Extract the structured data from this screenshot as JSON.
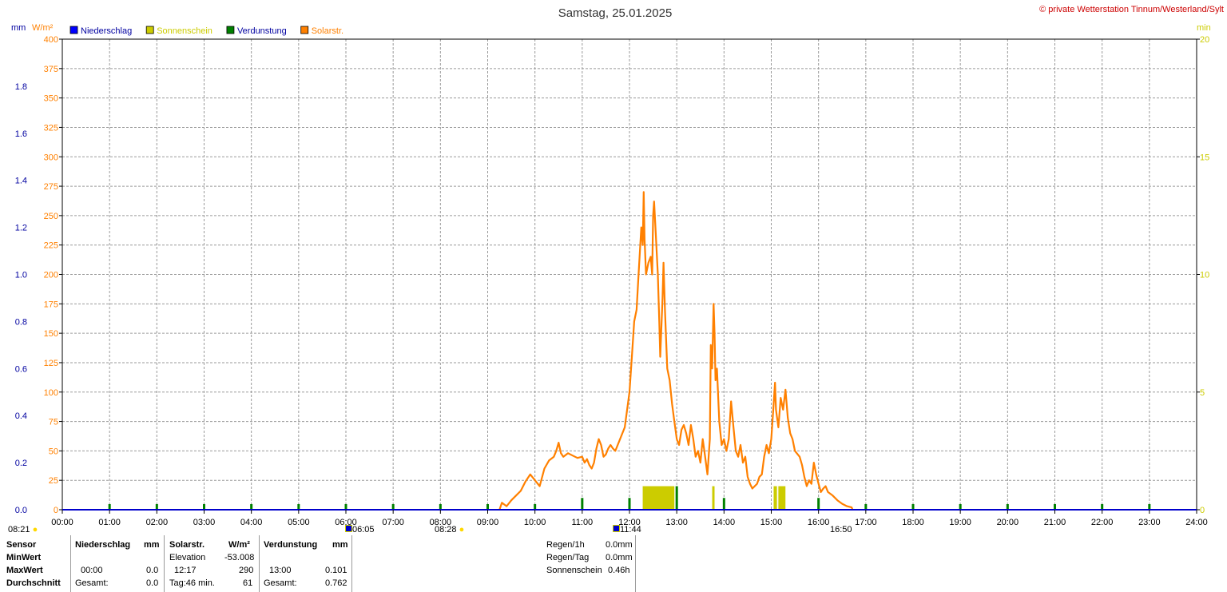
{
  "chart_data": {
    "type": "line",
    "title": "Samstag, 25.01.2025",
    "copyright": "© private Wetterstation Tinnum/Westerland/Sylt",
    "left_units": {
      "mm": "mm",
      "wm2": "W/m²"
    },
    "right_unit": "min",
    "legend": [
      {
        "label": "Niederschlag",
        "color": "#0000ff",
        "text_color": "#0000a0"
      },
      {
        "label": "Sonnenschein",
        "color": "#cccc00",
        "text_color": "#cccc00"
      },
      {
        "label": "Verdunstung",
        "color": "#008000",
        "text_color": "#0000a0"
      },
      {
        "label": "Solarstr.",
        "color": "#ff8000",
        "text_color": "#ff8000"
      }
    ],
    "x_ticks": [
      "00:00",
      "01:00",
      "02:00",
      "03:00",
      "04:00",
      "05:00",
      "06:00",
      "07:00",
      "08:00",
      "09:00",
      "10:00",
      "11:00",
      "12:00",
      "13:00",
      "14:00",
      "15:00",
      "16:00",
      "17:00",
      "18:00",
      "19:00",
      "20:00",
      "21:00",
      "22:00",
      "23:00",
      "24:00"
    ],
    "y_mm_ticks": [
      "0.0",
      "0.2",
      "0.4",
      "0.6",
      "0.8",
      "1.0",
      "1.2",
      "1.4",
      "1.6",
      "1.8"
    ],
    "y_wm2_ticks": [
      "0",
      "25",
      "50",
      "75",
      "100",
      "125",
      "150",
      "175",
      "200",
      "225",
      "250",
      "275",
      "300",
      "325",
      "350",
      "375",
      "400"
    ],
    "y_min_ticks": [
      "0",
      "5",
      "10",
      "15",
      "20"
    ],
    "ylim_wm2": [
      0,
      400
    ],
    "ylim_mm": [
      0,
      2.0
    ],
    "ylim_min": [
      0,
      20
    ],
    "xlim_hours": [
      0,
      24
    ],
    "grid": true,
    "solar_series": {
      "name": "Solarstr.",
      "color": "#ff8000",
      "points": [
        [
          9.25,
          0
        ],
        [
          9.3,
          6
        ],
        [
          9.4,
          3
        ],
        [
          9.5,
          8
        ],
        [
          9.6,
          12
        ],
        [
          9.7,
          16
        ],
        [
          9.8,
          24
        ],
        [
          9.9,
          30
        ],
        [
          10.0,
          25
        ],
        [
          10.1,
          20
        ],
        [
          10.2,
          35
        ],
        [
          10.3,
          42
        ],
        [
          10.4,
          45
        ],
        [
          10.45,
          50
        ],
        [
          10.5,
          57
        ],
        [
          10.55,
          48
        ],
        [
          10.6,
          45
        ],
        [
          10.7,
          48
        ],
        [
          10.8,
          46
        ],
        [
          10.9,
          44
        ],
        [
          11.0,
          45
        ],
        [
          11.05,
          40
        ],
        [
          11.1,
          43
        ],
        [
          11.15,
          38
        ],
        [
          11.2,
          35
        ],
        [
          11.25,
          40
        ],
        [
          11.3,
          52
        ],
        [
          11.35,
          60
        ],
        [
          11.4,
          55
        ],
        [
          11.45,
          45
        ],
        [
          11.5,
          47
        ],
        [
          11.55,
          52
        ],
        [
          11.6,
          55
        ],
        [
          11.65,
          52
        ],
        [
          11.7,
          50
        ],
        [
          11.8,
          60
        ],
        [
          11.9,
          70
        ],
        [
          12.0,
          100
        ],
        [
          12.05,
          130
        ],
        [
          12.1,
          160
        ],
        [
          12.15,
          170
        ],
        [
          12.2,
          205
        ],
        [
          12.25,
          240
        ],
        [
          12.28,
          225
        ],
        [
          12.3,
          270
        ],
        [
          12.32,
          230
        ],
        [
          12.35,
          200
        ],
        [
          12.4,
          210
        ],
        [
          12.45,
          215
        ],
        [
          12.48,
          200
        ],
        [
          12.5,
          250
        ],
        [
          12.52,
          262
        ],
        [
          12.55,
          240
        ],
        [
          12.6,
          200
        ],
        [
          12.63,
          160
        ],
        [
          12.65,
          130
        ],
        [
          12.7,
          180
        ],
        [
          12.72,
          210
        ],
        [
          12.75,
          170
        ],
        [
          12.8,
          120
        ],
        [
          12.85,
          110
        ],
        [
          12.9,
          90
        ],
        [
          12.95,
          75
        ],
        [
          13.0,
          60
        ],
        [
          13.05,
          55
        ],
        [
          13.1,
          68
        ],
        [
          13.15,
          72
        ],
        [
          13.2,
          65
        ],
        [
          13.25,
          55
        ],
        [
          13.3,
          72
        ],
        [
          13.35,
          60
        ],
        [
          13.4,
          45
        ],
        [
          13.45,
          50
        ],
        [
          13.5,
          40
        ],
        [
          13.55,
          60
        ],
        [
          13.6,
          45
        ],
        [
          13.65,
          30
        ],
        [
          13.7,
          60
        ],
        [
          13.72,
          140
        ],
        [
          13.75,
          120
        ],
        [
          13.78,
          175
        ],
        [
          13.8,
          150
        ],
        [
          13.82,
          110
        ],
        [
          13.85,
          120
        ],
        [
          13.9,
          75
        ],
        [
          13.95,
          55
        ],
        [
          14.0,
          60
        ],
        [
          14.05,
          50
        ],
        [
          14.1,
          60
        ],
        [
          14.15,
          92
        ],
        [
          14.2,
          70
        ],
        [
          14.25,
          50
        ],
        [
          14.3,
          45
        ],
        [
          14.35,
          55
        ],
        [
          14.4,
          40
        ],
        [
          14.45,
          45
        ],
        [
          14.5,
          28
        ],
        [
          14.55,
          22
        ],
        [
          14.6,
          18
        ],
        [
          14.65,
          20
        ],
        [
          14.7,
          22
        ],
        [
          14.75,
          28
        ],
        [
          14.8,
          30
        ],
        [
          14.85,
          45
        ],
        [
          14.9,
          55
        ],
        [
          14.95,
          48
        ],
        [
          15.0,
          60
        ],
        [
          15.05,
          90
        ],
        [
          15.08,
          108
        ],
        [
          15.1,
          85
        ],
        [
          15.15,
          70
        ],
        [
          15.2,
          95
        ],
        [
          15.25,
          85
        ],
        [
          15.3,
          102
        ],
        [
          15.35,
          78
        ],
        [
          15.4,
          65
        ],
        [
          15.45,
          60
        ],
        [
          15.5,
          50
        ],
        [
          15.6,
          45
        ],
        [
          15.65,
          38
        ],
        [
          15.7,
          28
        ],
        [
          15.75,
          20
        ],
        [
          15.8,
          25
        ],
        [
          15.85,
          22
        ],
        [
          15.9,
          40
        ],
        [
          15.95,
          30
        ],
        [
          16.0,
          22
        ],
        [
          16.05,
          15
        ],
        [
          16.1,
          18
        ],
        [
          16.15,
          20
        ],
        [
          16.2,
          15
        ],
        [
          16.3,
          12
        ],
        [
          16.4,
          8
        ],
        [
          16.5,
          5
        ],
        [
          16.6,
          3
        ],
        [
          16.7,
          2
        ],
        [
          16.72,
          0
        ]
      ]
    },
    "sunshine_bars": {
      "name": "Sonnenschein",
      "color": "#cccc00",
      "unit": "min",
      "intervals": [
        [
          12.28,
          12.95,
          1.0
        ],
        [
          13.75,
          13.8,
          1.0
        ],
        [
          15.05,
          15.12,
          1.0
        ],
        [
          15.15,
          15.3,
          1.0
        ]
      ]
    },
    "evaporation_ticks": {
      "name": "Verdunstung",
      "color": "#008000",
      "small_hours": [
        1,
        2,
        3,
        4,
        5,
        6,
        7,
        8,
        9,
        10,
        17,
        18,
        19,
        20,
        21,
        22,
        23
      ],
      "large": [
        [
          11,
          0.05
        ],
        [
          12,
          0.05
        ],
        [
          13,
          0.1
        ],
        [
          14,
          0.05
        ],
        [
          16,
          0.05
        ]
      ]
    },
    "niederschlag_values": [
      0
    ]
  },
  "time_markers": {
    "left": "08:21",
    "sunrise_window": "06:05",
    "sunrise": "08:28",
    "noon": "11:44",
    "sunset": "16:50"
  },
  "table": {
    "row_labels": [
      "Sensor",
      "MinWert",
      "MaxWert",
      "Durchschnitt"
    ],
    "niederschlag": {
      "header": "Niederschlag",
      "unit": "mm",
      "max_time": "00:00",
      "max_value": "0.0",
      "avg_label": "Gesamt:",
      "avg_value": "0.0"
    },
    "solar": {
      "header": "Solarstr.",
      "unit": "W/m²",
      "min_label": "Elevation",
      "min_value": "-53.008",
      "max_time": "12:17",
      "max_value": "290",
      "avg_label": "Tag:46 min.",
      "avg_value": "61"
    },
    "verdunstung": {
      "header": "Verdunstung",
      "unit": "mm",
      "max_time": "13:00",
      "max_value": "0.101",
      "avg_label": "Gesamt:",
      "avg_value": "0.762"
    },
    "summary": [
      {
        "label": "Regen/1h",
        "value": "0.0mm"
      },
      {
        "label": "Regen/Tag",
        "value": "0.0mm"
      },
      {
        "label": "Sonnenschein",
        "value": "0.46h"
      }
    ]
  }
}
